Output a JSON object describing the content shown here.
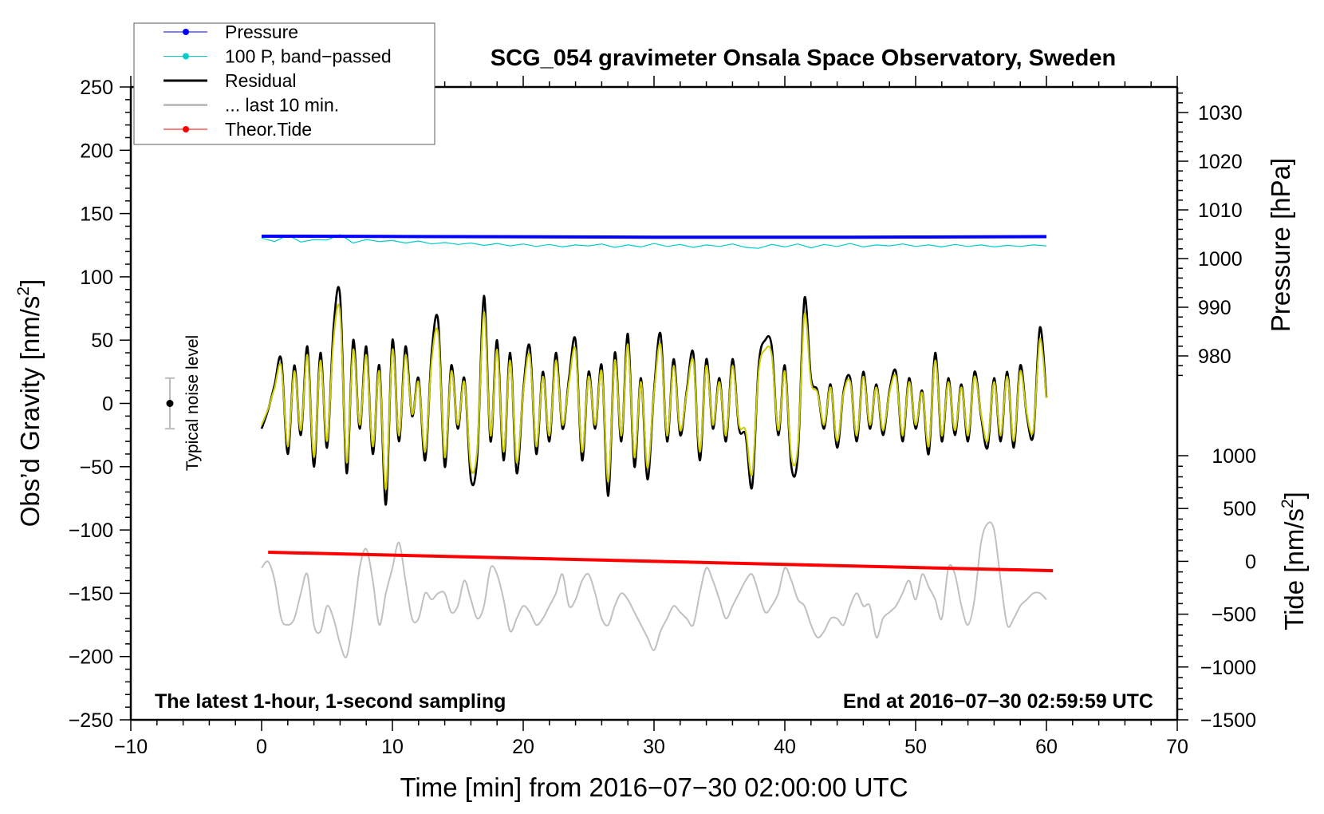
{
  "chart_data": {
    "type": "line",
    "title": "SCG_054 gravimeter Onsala Space Observatory, Sweden",
    "xlabel": "Time [min] from 2016−07−30 02:00:00 UTC",
    "ylabel": "Obs’d Gravity [nm/s",
    "ylabel_sup": "2",
    "ylabel_end": "]",
    "y2label_pressure": "Pressure [hPa]",
    "y2label_tide": "Tide [nm/s",
    "y2label_tide_sup": "2",
    "y2label_tide_end": "]",
    "xlim": [
      -10,
      70
    ],
    "ylim": [
      -250,
      250
    ],
    "pressure_axis": {
      "range": [
        1030,
        980
      ],
      "ticks": [
        "1030",
        "1020",
        "1010",
        "1000",
        "990",
        "980"
      ]
    },
    "tide_axis": {
      "range": [
        -1500,
        1000
      ],
      "ticks": [
        "1000",
        "500",
        "0",
        "−500",
        "−1000",
        "−1500"
      ]
    },
    "xticks": [
      "−10",
      "0",
      "10",
      "20",
      "30",
      "40",
      "50",
      "60",
      "70"
    ],
    "yticks": [
      "250",
      "200",
      "150",
      "100",
      "50",
      "0",
      "−50",
      "−100",
      "−150",
      "−200",
      "−250"
    ],
    "annotation_left": "The latest 1-hour, 1-second sampling",
    "annotation_right": "End at 2016−07−30 02:59:59 UTC",
    "noise_label": "Typical noise level",
    "noise_level": 20,
    "legend": {
      "placement": "top-left",
      "entries": [
        {
          "label": "Pressure",
          "color": "#0000ff"
        },
        {
          "label": "100 P, band−passed",
          "color": "#00cccc"
        },
        {
          "label": "Residual",
          "color": "#000000"
        },
        {
          "label": "... last 10 min.",
          "color": "#c0c0c0"
        },
        {
          "label": "Theor.Tide",
          "color": "#ff0000"
        }
      ]
    },
    "series": [
      {
        "name": "Pressure",
        "unit": "hPa",
        "x_range": [
          0,
          60
        ],
        "values": [
          1004.6,
          1004.5,
          1004.4,
          1004.4,
          1004.5
        ]
      },
      {
        "name": "100 P, band-passed",
        "unit": "hPa",
        "x_range": [
          0,
          60
        ],
        "values": [
          1004.2,
          1003.5,
          1004.8,
          1003.4,
          1003.9,
          1003.8,
          1004.9,
          1003.2,
          1003.9,
          1003.5,
          1003.7,
          1003.2,
          1003.6,
          1003.0,
          1003.3,
          1002.9,
          1003.2,
          1002.7,
          1003.1,
          1002.6,
          1003.0,
          1002.5,
          1002.9,
          1002.4,
          1002.8,
          1002.6,
          1003.0,
          1002.3,
          1002.8,
          1002.4,
          1003.1,
          1002.5,
          1002.9,
          1002.3,
          1002.8,
          1002.5,
          1003.0,
          1002.3,
          1002.1,
          1002.9,
          1002.4,
          1003.0,
          1002.2,
          1002.9,
          1002.5,
          1003.1,
          1002.4,
          1002.8,
          1002.6,
          1003.0,
          1002.5,
          1002.8,
          1002.4,
          1002.9,
          1002.5,
          1002.8,
          1002.4,
          1002.7,
          1002.5,
          1002.8,
          1002.6
        ]
      },
      {
        "name": "Residual",
        "unit": "nm/s2",
        "x_range": [
          0,
          60
        ],
        "values": [
          -20,
          -5,
          15,
          35,
          -40,
          30,
          -25,
          45,
          -50,
          40,
          -35,
          60,
          85,
          -55,
          50,
          -20,
          45,
          -40,
          30,
          -80,
          50,
          -30,
          45,
          -10,
          20,
          -45,
          40,
          65,
          -50,
          30,
          -20,
          20,
          -60,
          -40,
          85,
          -30,
          50,
          -45,
          40,
          -55,
          10,
          45,
          -40,
          25,
          -30,
          40,
          -20,
          20,
          50,
          -45,
          25,
          -20,
          30,
          -73,
          40,
          -30,
          55,
          -50,
          20,
          -60,
          10,
          55,
          -30,
          35,
          -25,
          10,
          40,
          -45,
          35,
          -20,
          20,
          -30,
          35,
          -20,
          -25,
          -66,
          30,
          50,
          45,
          -25,
          30,
          -50,
          -40,
          83,
          20,
          10,
          -20,
          15,
          -35,
          10,
          20,
          -30,
          25,
          -20,
          15,
          -25,
          10,
          25,
          -30,
          20,
          -20,
          10,
          -40,
          40,
          -30,
          20,
          -25,
          15,
          -30,
          25,
          -10,
          -35,
          20,
          -30,
          25,
          -35,
          30,
          -10,
          -25,
          60,
          5
        ]
      },
      {
        "name": "... last 10 min.",
        "unit": "nm/s2",
        "x_range": [
          0,
          60
        ],
        "values": [
          -130,
          -125,
          -140,
          -170,
          -175,
          -170,
          -150,
          -135,
          -175,
          -180,
          -160,
          -170,
          -190,
          -200,
          -170,
          -130,
          -115,
          -140,
          -175,
          -150,
          -130,
          -110,
          -140,
          -170,
          -170,
          -150,
          -155,
          -150,
          -150,
          -165,
          -160,
          -140,
          -155,
          -170,
          -160,
          -130,
          -135,
          -155,
          -180,
          -170,
          -160,
          -165,
          -175,
          -170,
          -160,
          -150,
          -135,
          -160,
          -155,
          -140,
          -135,
          -150,
          -170,
          -175,
          -160,
          -150,
          -155,
          -165,
          -175,
          -185,
          -195,
          -180,
          -170,
          -160,
          -165,
          -170,
          -175,
          -150,
          -130,
          -140,
          -155,
          -170,
          -160,
          -150,
          -140,
          -135,
          -150,
          -165,
          -160,
          -150,
          -130,
          -140,
          -155,
          -160,
          -175,
          -185,
          -180,
          -170,
          -170,
          -175,
          -160,
          -150,
          -160,
          -160,
          -185,
          -170,
          -165,
          -160,
          -150,
          -140,
          -155,
          -135,
          -145,
          -155,
          -170,
          -130,
          -135,
          -160,
          -175,
          -155,
          -110,
          -95,
          -100,
          -140,
          -175,
          -170,
          -160,
          -155,
          -150,
          -150,
          -155
        ]
      },
      {
        "name": "Theor.Tide",
        "unit": "nm/s2",
        "x_range": [
          0.5,
          60.5
        ],
        "values": [
          86,
          -88
        ]
      }
    ]
  }
}
